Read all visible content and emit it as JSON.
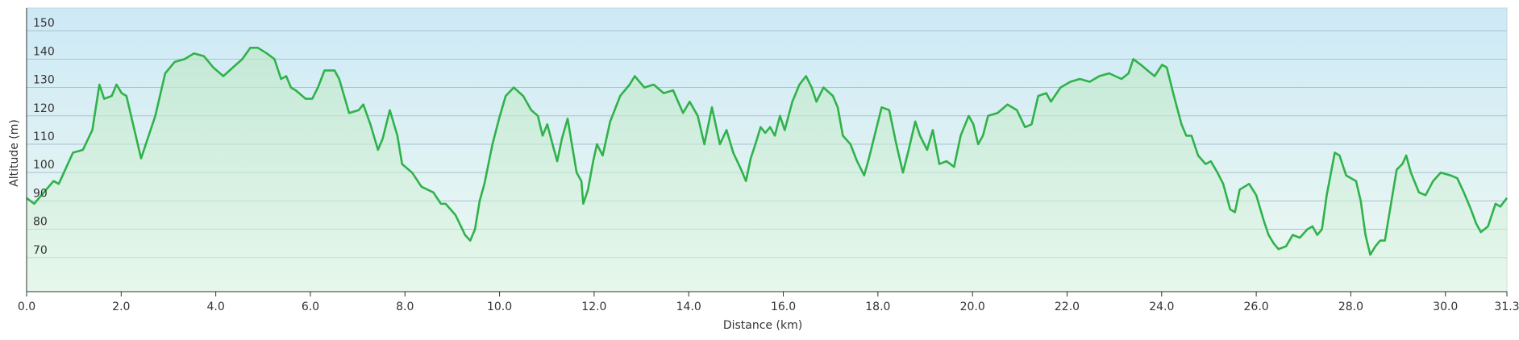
{
  "chart_data": {
    "type": "area",
    "x_label": "Distance  (km)",
    "y_label": "Altitude (m)",
    "x": [
      0,
      0.16,
      0.57,
      0.68,
      0.98,
      1.19,
      1.39,
      1.54,
      1.64,
      1.8,
      1.9,
      2.01,
      2.11,
      2.42,
      2.72,
      2.93,
      3.13,
      3.34,
      3.54,
      3.75,
      3.95,
      4.16,
      4.36,
      4.56,
      4.73,
      4.89,
      5.08,
      5.24,
      5.38,
      5.49,
      5.59,
      5.69,
      5.9,
      6.04,
      6.16,
      6.3,
      6.51,
      6.61,
      6.82,
      7.02,
      7.12,
      7.27,
      7.43,
      7.53,
      7.68,
      7.84,
      7.94,
      8.15,
      8.35,
      8.6,
      8.76,
      8.86,
      9.07,
      9.27,
      9.38,
      9.48,
      9.58,
      9.68,
      9.85,
      9.99,
      10.13,
      10.3,
      10.5,
      10.67,
      10.81,
      10.91,
      11.01,
      11.12,
      11.22,
      11.32,
      11.44,
      11.53,
      11.63,
      11.73,
      11.77,
      11.87,
      11.98,
      12.06,
      12.18,
      12.34,
      12.55,
      12.75,
      12.86,
      13.06,
      13.26,
      13.47,
      13.67,
      13.88,
      14.02,
      14.19,
      14.33,
      14.49,
      14.66,
      14.8,
      14.94,
      15.11,
      15.21,
      15.31,
      15.41,
      15.52,
      15.62,
      15.72,
      15.82,
      15.93,
      16.03,
      16.19,
      16.34,
      16.48,
      16.6,
      16.7,
      16.85,
      17.05,
      17.15,
      17.26,
      17.42,
      17.56,
      17.71,
      17.81,
      17.93,
      18.08,
      18.24,
      18.39,
      18.53,
      18.65,
      18.79,
      18.89,
      19.04,
      19.16,
      19.3,
      19.45,
      19.61,
      19.75,
      19.92,
      20.02,
      20.12,
      20.22,
      20.33,
      20.53,
      20.74,
      20.94,
      21.11,
      21.25,
      21.39,
      21.56,
      21.66,
      21.86,
      22.07,
      22.27,
      22.48,
      22.68,
      22.89,
      23.15,
      23.3,
      23.4,
      23.56,
      23.7,
      23.85,
      24.01,
      24.11,
      24.26,
      24.42,
      24.52,
      24.63,
      24.77,
      24.93,
      25.04,
      25.18,
      25.3,
      25.45,
      25.55,
      25.65,
      25.85,
      26.0,
      26.16,
      26.26,
      26.37,
      26.47,
      26.63,
      26.77,
      26.92,
      27.08,
      27.19,
      27.29,
      27.39,
      27.49,
      27.66,
      27.76,
      27.9,
      28.11,
      28.21,
      28.31,
      28.41,
      28.52,
      28.62,
      28.72,
      28.82,
      28.97,
      29.09,
      29.17,
      29.27,
      29.44,
      29.58,
      29.74,
      29.9,
      30.11,
      30.25,
      30.39,
      30.54,
      30.65,
      30.75,
      30.9,
      31.06,
      31.16,
      31.3
    ],
    "values": [
      91,
      89,
      97,
      96,
      107,
      108,
      115,
      131,
      126,
      127,
      131,
      128,
      127,
      105,
      120,
      135,
      139,
      140,
      142,
      141,
      137,
      134,
      137,
      140,
      144,
      144,
      142,
      140,
      133,
      134,
      130,
      129,
      126,
      126,
      130,
      136,
      136,
      133,
      121,
      122,
      124,
      117,
      108,
      112,
      122,
      113,
      103,
      100,
      95,
      93,
      89,
      89,
      85,
      78,
      76,
      80,
      90,
      96,
      110,
      119,
      127,
      130,
      127,
      122,
      120,
      113,
      117,
      110,
      104,
      112,
      119,
      110,
      100,
      97,
      89,
      94,
      104,
      110,
      106,
      118,
      127,
      131,
      134,
      130,
      131,
      128,
      129,
      121,
      125,
      120,
      110,
      123,
      110,
      115,
      107,
      101,
      97,
      105,
      110,
      116,
      114,
      116,
      113,
      120,
      115,
      125,
      131,
      134,
      130,
      125,
      130,
      127,
      123,
      113,
      110,
      104,
      99,
      105,
      113,
      123,
      122,
      110,
      100,
      108,
      118,
      113,
      108,
      115,
      103,
      104,
      102,
      113,
      120,
      117,
      110,
      113,
      120,
      121,
      124,
      122,
      116,
      117,
      127,
      128,
      125,
      130,
      132,
      133,
      132,
      134,
      135,
      133,
      135,
      140,
      138,
      136,
      134,
      138,
      137,
      127,
      117,
      113,
      113,
      106,
      103,
      104,
      100,
      96,
      87,
      86,
      94,
      96,
      92,
      83,
      78,
      75,
      73,
      74,
      78,
      77,
      80,
      81,
      78,
      80,
      92,
      107,
      106,
      99,
      97,
      90,
      78,
      71,
      74,
      76,
      76,
      86,
      101,
      103,
      106,
      100,
      93,
      92,
      97,
      100,
      99,
      98,
      93,
      87,
      82,
      79,
      81,
      89,
      88,
      91
    ],
    "color": "#2fb24a",
    "xlim": [
      0,
      31.3
    ],
    "xticks": [
      {
        "value": 0,
        "label": "0.0"
      },
      {
        "value": 2,
        "label": "2.0"
      },
      {
        "value": 4,
        "label": "4.0"
      },
      {
        "value": 6,
        "label": "6.0"
      },
      {
        "value": 8,
        "label": "8.0"
      },
      {
        "value": 10,
        "label": "10.0"
      },
      {
        "value": 12,
        "label": "12.0"
      },
      {
        "value": 14,
        "label": "14.0"
      },
      {
        "value": 16,
        "label": "16.0"
      },
      {
        "value": 18,
        "label": "18.0"
      },
      {
        "value": 20,
        "label": "20.0"
      },
      {
        "value": 22,
        "label": "22.0"
      },
      {
        "value": 24,
        "label": "24.0"
      },
      {
        "value": 26,
        "label": "26.0"
      },
      {
        "value": 28,
        "label": "28.0"
      },
      {
        "value": 30,
        "label": "30.0"
      },
      31.3
    ],
    "ylim": [
      58,
      158
    ],
    "yticks": [
      70,
      80,
      90,
      100,
      110,
      120,
      130,
      140,
      150
    ],
    "grid": true
  }
}
